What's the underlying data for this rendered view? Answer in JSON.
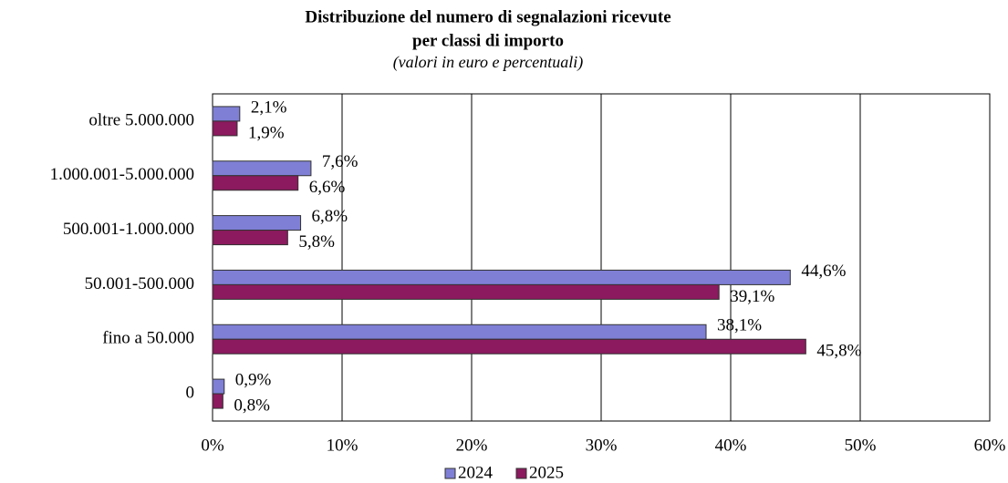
{
  "chart_data": {
    "type": "hbar",
    "title": [
      "Distribuzione del numero di segnalazioni ricevute",
      "per classi di importo"
    ],
    "subtitle": "(valori in euro e percentuali)",
    "categories": [
      "oltre 5.000.000",
      "1.000.001-5.000.000",
      "500.001-1.000.000",
      "50.001-500.000",
      "fino a 50.000",
      "0"
    ],
    "series": [
      {
        "name": "2024",
        "color": "#7f7fd6",
        "values": [
          2.1,
          7.6,
          6.8,
          44.6,
          38.1,
          0.9
        ],
        "value_labels": [
          "2,1%",
          "7,6%",
          "6,8%",
          "44,6%",
          "38,1%",
          "0,9%"
        ]
      },
      {
        "name": "2025",
        "color": "#8b1a5e",
        "values": [
          1.9,
          6.6,
          5.8,
          39.1,
          45.8,
          0.8
        ],
        "value_labels": [
          "1,9%",
          "6,6%",
          "5,8%",
          "39,1%",
          "45,8%",
          "0,8%"
        ]
      }
    ],
    "xlim": [
      0,
      60
    ],
    "xticks": [
      {
        "value": 0,
        "label": "0%"
      },
      {
        "value": 10,
        "label": "10%"
      },
      {
        "value": 20,
        "label": "20%"
      },
      {
        "value": 30,
        "label": "30%"
      },
      {
        "value": 40,
        "label": "40%"
      },
      {
        "value": 50,
        "label": "50%"
      },
      {
        "value": 60,
        "label": "60%"
      }
    ],
    "grid": true,
    "legend": "bottom"
  }
}
